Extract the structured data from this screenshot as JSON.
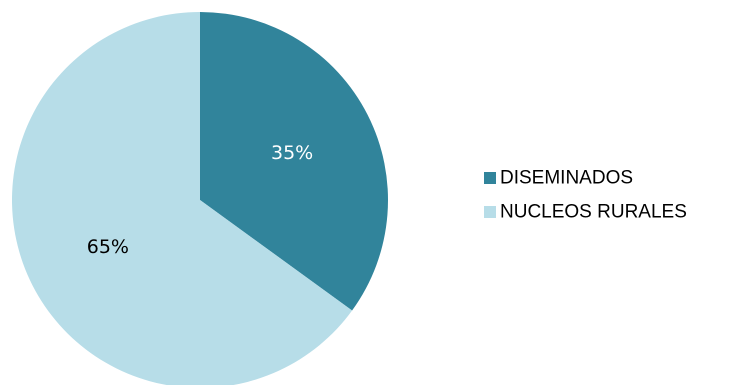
{
  "chart_data": {
    "type": "pie",
    "title": "",
    "categories": [
      "DISEMINADOS",
      "NUCLEOS RURALES"
    ],
    "values": [
      35,
      65
    ],
    "labels": [
      "35%",
      "65%"
    ],
    "colors": [
      "#31849B",
      "#B7DDE8"
    ],
    "label_colors": [
      "#ffffff",
      "#000000"
    ],
    "start_angle_deg": 0,
    "direction": "clockwise",
    "legend_position": "right",
    "legend": [
      {
        "name": "DISEMINADOS",
        "color": "#31849B"
      },
      {
        "name": "NUCLEOS RURALES",
        "color": "#B7DDE8"
      }
    ]
  }
}
